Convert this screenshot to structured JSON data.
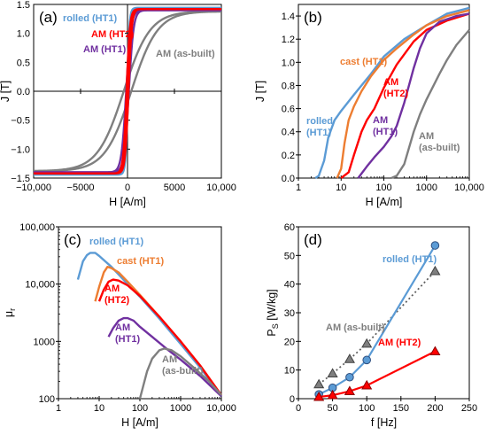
{
  "chart_data": [
    {
      "panel": "(a)",
      "type": "line",
      "xlabel": "H [A/m]",
      "ylabel": "J [T]",
      "xlim": [
        -10000,
        10000
      ],
      "ylim": [
        -1.5,
        1.5
      ],
      "xticks": [
        -10000,
        -5000,
        0,
        5000,
        10000
      ],
      "xtick_labels": [
        "−10,000",
        "−5000",
        "0",
        "5000",
        "10,000"
      ],
      "yticks": [
        -1.5,
        -1.0,
        -0.5,
        0.0,
        0.5,
        1.0,
        1.5
      ],
      "ytick_labels": [
        "−1.5",
        "−1.0",
        "−0.5",
        "0.0",
        "0.5",
        "1.0",
        "1.5"
      ],
      "series": [
        {
          "name": "rolled (HT1)",
          "color": "#5b9bd5",
          "hc": 50,
          "js": 1.44,
          "k": 250
        },
        {
          "name": "AM (HT2)",
          "color": "#ff0000",
          "hc": 100,
          "js": 1.42,
          "k": 350
        },
        {
          "name": "AM (HT1)",
          "color": "#7030a0",
          "hc": 140,
          "js": 1.4,
          "k": 500
        },
        {
          "name": "AM (as-built)",
          "color": "#7f7f7f",
          "hc": 400,
          "js": 1.38,
          "k": 2800
        }
      ],
      "labels": [
        {
          "text": "rolled (HT1)",
          "color": "#5b9bd5"
        },
        {
          "text": "AM (HT2)",
          "color": "#ff0000"
        },
        {
          "text": "AM (HT1)",
          "color": "#7030a0"
        },
        {
          "text": "AM (as-built)",
          "color": "#7f7f7f"
        }
      ]
    },
    {
      "panel": "(b)",
      "type": "line",
      "xscale": "log",
      "xlabel": "H [A/m]",
      "ylabel": "J [T]",
      "xlim": [
        1,
        10000
      ],
      "ylim": [
        0,
        1.5
      ],
      "xticks": [
        1,
        10,
        100,
        1000,
        10000
      ],
      "xtick_labels": [
        "1",
        "10",
        "100",
        "1000",
        "10,000"
      ],
      "yticks": [
        0.0,
        0.2,
        0.4,
        0.6,
        0.8,
        1.0,
        1.2,
        1.4
      ],
      "ytick_labels": [
        "0.0",
        "0.2",
        "0.4",
        "0.6",
        "0.8",
        "1.0",
        "1.2",
        "1.4"
      ],
      "series": [
        {
          "name": "rolled (HT1)",
          "color": "#5b9bd5",
          "points": [
            [
              2.5,
              0.0
            ],
            [
              3,
              0.02
            ],
            [
              4,
              0.15
            ],
            [
              5,
              0.35
            ],
            [
              7,
              0.5
            ],
            [
              10,
              0.58
            ],
            [
              20,
              0.72
            ],
            [
              50,
              0.9
            ],
            [
              100,
              1.05
            ],
            [
              300,
              1.2
            ],
            [
              1000,
              1.32
            ],
            [
              3000,
              1.42
            ],
            [
              10000,
              1.47
            ]
          ]
        },
        {
          "name": "cast (HT1)",
          "color": "#ed7d31",
          "points": [
            [
              8,
              0.0
            ],
            [
              10,
              0.08
            ],
            [
              12,
              0.3
            ],
            [
              15,
              0.5
            ],
            [
              20,
              0.62
            ],
            [
              30,
              0.75
            ],
            [
              50,
              0.88
            ],
            [
              100,
              1.02
            ],
            [
              200,
              1.12
            ],
            [
              500,
              1.24
            ],
            [
              1000,
              1.32
            ],
            [
              3000,
              1.4
            ],
            [
              10000,
              1.45
            ]
          ]
        },
        {
          "name": "AM (HT2)",
          "color": "#ff0000",
          "points": [
            [
              10,
              0.0
            ],
            [
              15,
              0.05
            ],
            [
              20,
              0.2
            ],
            [
              30,
              0.4
            ],
            [
              40,
              0.5
            ],
            [
              60,
              0.6
            ],
            [
              100,
              0.78
            ],
            [
              200,
              0.98
            ],
            [
              500,
              1.18
            ],
            [
              1000,
              1.28
            ],
            [
              3000,
              1.36
            ],
            [
              10000,
              1.42
            ]
          ]
        },
        {
          "name": "AM (HT1)",
          "color": "#7030a0",
          "points": [
            [
              25,
              0.0
            ],
            [
              40,
              0.1
            ],
            [
              60,
              0.18
            ],
            [
              100,
              0.27
            ],
            [
              150,
              0.36
            ],
            [
              200,
              0.45
            ],
            [
              300,
              0.65
            ],
            [
              500,
              0.95
            ],
            [
              700,
              1.12
            ],
            [
              1000,
              1.25
            ],
            [
              2000,
              1.35
            ],
            [
              5000,
              1.4
            ],
            [
              10000,
              1.42
            ]
          ]
        },
        {
          "name": "AM (as-built)",
          "color": "#7f7f7f",
          "points": [
            [
              150,
              0.0
            ],
            [
              200,
              0.02
            ],
            [
              300,
              0.12
            ],
            [
              500,
              0.4
            ],
            [
              700,
              0.55
            ],
            [
              1000,
              0.68
            ],
            [
              2000,
              0.9
            ],
            [
              3000,
              1.02
            ],
            [
              5000,
              1.15
            ],
            [
              10000,
              1.28
            ]
          ]
        }
      ],
      "labels": [
        {
          "text": [
            "cast (HT1)"
          ],
          "color": "#ed7d31"
        },
        {
          "text": [
            "AM",
            "(HT2)"
          ],
          "color": "#ff0000"
        },
        {
          "text": [
            "rolled",
            "(HT1)"
          ],
          "color": "#5b9bd5"
        },
        {
          "text": [
            "AM",
            "(HT1)"
          ],
          "color": "#7030a0"
        },
        {
          "text": [
            "AM",
            "(as-built)"
          ],
          "color": "#7f7f7f"
        }
      ]
    },
    {
      "panel": "(c)",
      "type": "line",
      "xscale": "log",
      "yscale": "log",
      "xlabel": "H [A/m]",
      "ylabel": "μ",
      "ylabel_sub": "r",
      "xlim": [
        1,
        10000
      ],
      "ylim": [
        100,
        100000
      ],
      "xticks": [
        1,
        10,
        100,
        1000,
        10000
      ],
      "xtick_labels": [
        "1",
        "10",
        "100",
        "1000",
        "10,000"
      ],
      "yticks": [
        100,
        1000,
        10000,
        100000
      ],
      "ytick_labels": [
        "100",
        "1000",
        "10,000",
        "100,000"
      ],
      "series": [
        {
          "name": "rolled (HT1)",
          "color": "#5b9bd5",
          "points": [
            [
              3,
              12000
            ],
            [
              4,
              25000
            ],
            [
              5,
              32000
            ],
            [
              6,
              35000
            ],
            [
              8,
              35000
            ],
            [
              10,
              31000
            ],
            [
              20,
              20000
            ],
            [
              50,
              10000
            ],
            [
              100,
              6000
            ],
            [
              300,
              2500
            ],
            [
              1000,
              900
            ],
            [
              3000,
              350
            ],
            [
              10000,
              110
            ]
          ]
        },
        {
          "name": "cast (HT1)",
          "color": "#ed7d31",
          "points": [
            [
              8,
              5000
            ],
            [
              10,
              9000
            ],
            [
              13,
              16000
            ],
            [
              16,
              20000
            ],
            [
              20,
              19000
            ],
            [
              30,
              16000
            ],
            [
              50,
              11000
            ],
            [
              100,
              6500
            ],
            [
              300,
              2700
            ],
            [
              1000,
              1000
            ],
            [
              3000,
              380
            ],
            [
              10000,
              115
            ]
          ]
        },
        {
          "name": "AM (HT2)",
          "color": "#ff0000",
          "points": [
            [
              10,
              5000
            ],
            [
              13,
              8000
            ],
            [
              17,
              11000
            ],
            [
              22,
              12000
            ],
            [
              30,
              11500
            ],
            [
              50,
              9500
            ],
            [
              100,
              6200
            ],
            [
              300,
              2700
            ],
            [
              1000,
              1000
            ],
            [
              3000,
              380
            ],
            [
              10000,
              115
            ]
          ]
        },
        {
          "name": "AM (HT1)",
          "color": "#7030a0",
          "points": [
            [
              17,
              1200
            ],
            [
              22,
              1700
            ],
            [
              30,
              2300
            ],
            [
              40,
              2550
            ],
            [
              50,
              2550
            ],
            [
              70,
              2300
            ],
            [
              100,
              1800
            ],
            [
              200,
              1200
            ],
            [
              500,
              700
            ],
            [
              1000,
              480
            ],
            [
              3000,
              250
            ],
            [
              10000,
              110
            ]
          ]
        },
        {
          "name": "AM (as-built)",
          "color": "#7f7f7f",
          "points": [
            [
              100,
              100
            ],
            [
              150,
              300
            ],
            [
              200,
              500
            ],
            [
              300,
              700
            ],
            [
              400,
              750
            ],
            [
              600,
              700
            ],
            [
              1000,
              550
            ],
            [
              2000,
              360
            ],
            [
              5000,
              200
            ],
            [
              10000,
              115
            ]
          ]
        }
      ],
      "labels": [
        {
          "text": [
            "rolled (HT1)"
          ],
          "color": "#5b9bd5"
        },
        {
          "text": [
            "cast (HT1)"
          ],
          "color": "#ed7d31"
        },
        {
          "text": [
            "AM",
            "(HT2)"
          ],
          "color": "#ff0000"
        },
        {
          "text": [
            "AM",
            "(HT1)"
          ],
          "color": "#7030a0"
        },
        {
          "text": [
            "AM",
            "(as-built)"
          ],
          "color": "#7f7f7f"
        }
      ]
    },
    {
      "panel": "(d)",
      "type": "scatter",
      "xlabel": "f [Hz]",
      "ylabel": "P",
      "ylabel_sub": "S",
      "ylabel_suffix": " [W/kg]",
      "xlim": [
        0,
        250
      ],
      "ylim": [
        0,
        60
      ],
      "xticks": [
        0,
        50,
        100,
        150,
        200,
        250
      ],
      "xtick_labels": [
        "0",
        "50",
        "100",
        "150",
        "200",
        "250"
      ],
      "yticks": [
        0,
        10,
        20,
        30,
        40,
        50,
        60
      ],
      "ytick_labels": [
        "0",
        "10",
        "20",
        "30",
        "40",
        "50",
        "60"
      ],
      "series": [
        {
          "name": "rolled (HT1)",
          "color": "#5b9bd5",
          "marker": "circle",
          "line": "solid",
          "x": [
            30,
            50,
            75,
            100,
            200
          ],
          "y": [
            1.5,
            3.8,
            7.5,
            13.5,
            53.5
          ]
        },
        {
          "name": "AM (as-built)",
          "color": "#7f7f7f",
          "marker": "triangle",
          "line": "dotted",
          "x": [
            30,
            50,
            75,
            100,
            200
          ],
          "y": [
            5.0,
            8.8,
            13.8,
            19.2,
            44.5
          ]
        },
        {
          "name": "AM (HT2)",
          "color": "#ff0000",
          "marker": "triangle",
          "line": "solid",
          "x": [
            30,
            50,
            75,
            100,
            200
          ],
          "y": [
            0.6,
            1.2,
            2.6,
            4.6,
            16.5
          ]
        }
      ],
      "labels": [
        {
          "text": "rolled (HT1)",
          "color": "#5b9bd5"
        },
        {
          "text": "AM (as-built)",
          "color": "#7f7f7f"
        },
        {
          "text": "AM (HT2)",
          "color": "#ff0000"
        }
      ]
    }
  ]
}
